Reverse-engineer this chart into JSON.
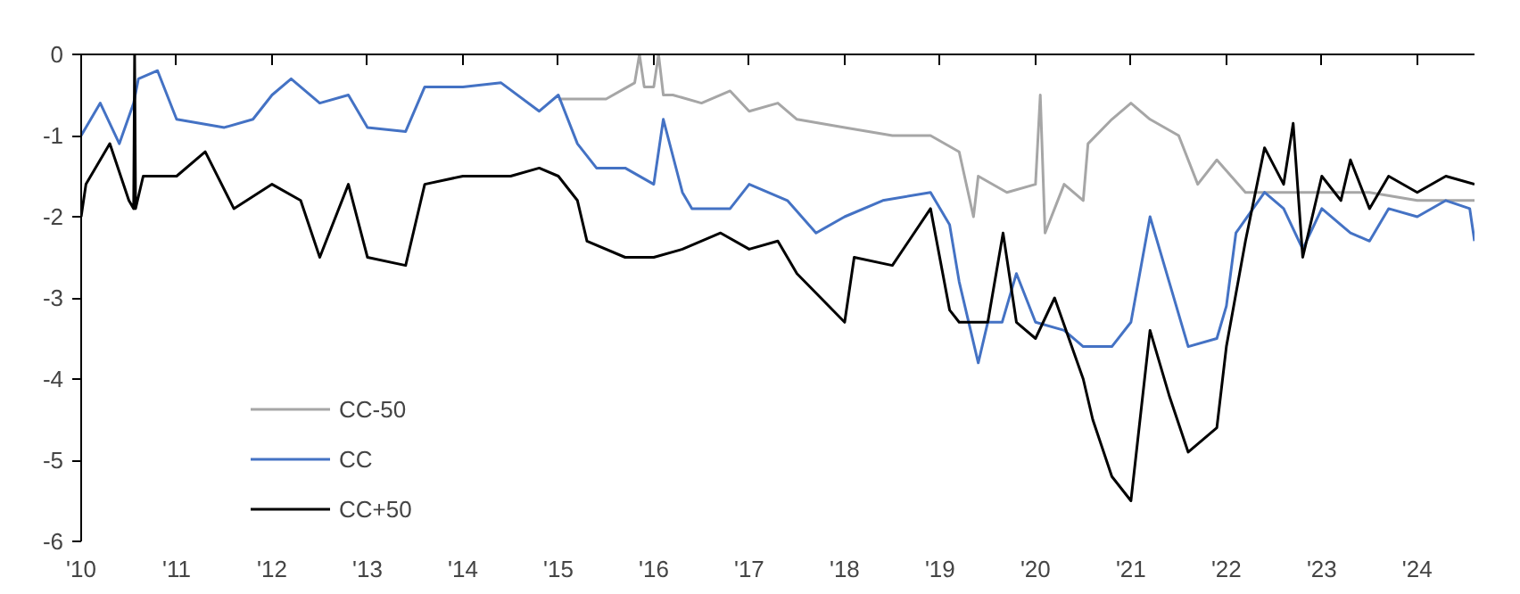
{
  "chart_data": {
    "type": "line",
    "xlim": [
      2010,
      2024.6
    ],
    "ylim": [
      -6,
      0
    ],
    "xticks": [
      {
        "value": 2010,
        "label": "'10"
      },
      {
        "value": 2011,
        "label": "'11"
      },
      {
        "value": 2012,
        "label": "'12"
      },
      {
        "value": 2013,
        "label": "'13"
      },
      {
        "value": 2014,
        "label": "'14"
      },
      {
        "value": 2015,
        "label": "'15"
      },
      {
        "value": 2016,
        "label": "'16"
      },
      {
        "value": 2017,
        "label": "'17"
      },
      {
        "value": 2018,
        "label": "'18"
      },
      {
        "value": 2019,
        "label": "'19"
      },
      {
        "value": 2020,
        "label": "'20"
      },
      {
        "value": 2021,
        "label": "'21"
      },
      {
        "value": 2022,
        "label": "'22"
      },
      {
        "value": 2023,
        "label": "'23"
      },
      {
        "value": 2024,
        "label": "'24"
      }
    ],
    "yticks": [
      0,
      -1,
      -2,
      -3,
      -4,
      -5,
      -6
    ],
    "grid": false,
    "legend": "bottom left",
    "line_style": "solid",
    "marker": "none",
    "series": [
      {
        "name": "CC-50",
        "color": "#a6a6a6",
        "x": [
          2015.0,
          2015.5,
          2015.8,
          2015.85,
          2015.9,
          2016.0,
          2016.05,
          2016.1,
          2016.2,
          2016.5,
          2016.8,
          2017.0,
          2017.3,
          2017.5,
          2018.0,
          2018.5,
          2018.9,
          2019.2,
          2019.35,
          2019.4,
          2019.7,
          2020.0,
          2020.05,
          2020.1,
          2020.3,
          2020.5,
          2020.55,
          2020.8,
          2021.0,
          2021.2,
          2021.5,
          2021.7,
          2021.9,
          2022.2,
          2022.5,
          2023.0,
          2023.5,
          2024.0,
          2024.6
        ],
        "values": [
          -0.55,
          -0.55,
          -0.35,
          0,
          -0.4,
          -0.4,
          0,
          -0.5,
          -0.5,
          -0.6,
          -0.45,
          -0.7,
          -0.6,
          -0.8,
          -0.9,
          -1.0,
          -1.0,
          -1.2,
          -2.0,
          -1.5,
          -1.7,
          -1.6,
          -0.5,
          -2.2,
          -1.6,
          -1.8,
          -1.1,
          -0.8,
          -0.6,
          -0.8,
          -1.0,
          -1.6,
          -1.3,
          -1.7,
          -1.7,
          -1.7,
          -1.7,
          -1.8,
          -1.8
        ]
      },
      {
        "name": "CC",
        "color": "#4472c4",
        "x": [
          2010.0,
          2010.2,
          2010.4,
          2010.55,
          2010.6,
          2010.8,
          2011.0,
          2011.5,
          2011.8,
          2012.0,
          2012.2,
          2012.5,
          2012.8,
          2013.0,
          2013.4,
          2013.6,
          2014.0,
          2014.4,
          2014.8,
          2015.0,
          2015.2,
          2015.4,
          2015.7,
          2016.0,
          2016.1,
          2016.3,
          2016.4,
          2016.8,
          2017.0,
          2017.4,
          2017.7,
          2018.0,
          2018.4,
          2018.9,
          2019.1,
          2019.2,
          2019.4,
          2019.5,
          2019.65,
          2019.8,
          2020.0,
          2020.3,
          2020.5,
          2020.8,
          2021.0,
          2021.2,
          2021.4,
          2021.6,
          2021.9,
          2022.0,
          2022.1,
          2022.4,
          2022.6,
          2022.8,
          2023.0,
          2023.3,
          2023.5,
          2023.7,
          2024.0,
          2024.3,
          2024.55,
          2024.6
        ],
        "values": [
          -1.0,
          -0.6,
          -1.1,
          -0.6,
          -0.3,
          -0.2,
          -0.8,
          -0.9,
          -0.8,
          -0.5,
          -0.3,
          -0.6,
          -0.5,
          -0.9,
          -0.95,
          -0.4,
          -0.4,
          -0.35,
          -0.7,
          -0.5,
          -1.1,
          -1.4,
          -1.4,
          -1.6,
          -0.8,
          -1.7,
          -1.9,
          -1.9,
          -1.6,
          -1.8,
          -2.2,
          -2.0,
          -1.8,
          -1.7,
          -2.1,
          -2.8,
          -3.8,
          -3.3,
          -3.3,
          -2.7,
          -3.3,
          -3.4,
          -3.6,
          -3.6,
          -3.3,
          -2.0,
          -2.8,
          -3.6,
          -3.5,
          -3.1,
          -2.2,
          -1.7,
          -1.9,
          -2.4,
          -1.9,
          -2.2,
          -2.3,
          -1.9,
          -2.0,
          -1.8,
          -1.9,
          -2.3
        ]
      },
      {
        "name": "CC+50",
        "color": "#000000",
        "x": [
          2010.0,
          2010.05,
          2010.3,
          2010.5,
          2010.55,
          2010.56,
          2010.57,
          2010.65,
          2011.0,
          2011.3,
          2011.6,
          2012.0,
          2012.3,
          2012.5,
          2012.8,
          2013.0,
          2013.4,
          2013.6,
          2014.0,
          2014.5,
          2014.8,
          2015.0,
          2015.2,
          2015.3,
          2015.7,
          2016.0,
          2016.3,
          2016.7,
          2017.0,
          2017.3,
          2017.5,
          2018.0,
          2018.1,
          2018.5,
          2018.9,
          2019.1,
          2019.2,
          2019.5,
          2019.66,
          2019.8,
          2020.0,
          2020.2,
          2020.5,
          2020.6,
          2020.8,
          2021.0,
          2021.2,
          2021.4,
          2021.6,
          2021.9,
          2022.0,
          2022.2,
          2022.4,
          2022.6,
          2022.7,
          2022.8,
          2023.0,
          2023.2,
          2023.3,
          2023.5,
          2023.7,
          2024.0,
          2024.3,
          2024.6
        ],
        "values": [
          -2.0,
          -1.6,
          -1.1,
          -1.8,
          -1.9,
          0,
          -1.9,
          -1.5,
          -1.5,
          -1.2,
          -1.9,
          -1.6,
          -1.8,
          -2.5,
          -1.6,
          -2.5,
          -2.6,
          -1.6,
          -1.5,
          -1.5,
          -1.4,
          -1.5,
          -1.8,
          -2.3,
          -2.5,
          -2.5,
          -2.4,
          -2.2,
          -2.4,
          -2.3,
          -2.7,
          -3.3,
          -2.5,
          -2.6,
          -1.9,
          -3.15,
          -3.3,
          -3.3,
          -2.2,
          -3.3,
          -3.5,
          -3.0,
          -4.0,
          -4.5,
          -5.2,
          -5.5,
          -3.4,
          -4.2,
          -4.9,
          -4.6,
          -3.6,
          -2.3,
          -1.15,
          -1.6,
          -0.85,
          -2.5,
          -1.5,
          -1.8,
          -1.3,
          -1.9,
          -1.5,
          -1.7,
          -1.5,
          -1.6
        ]
      }
    ]
  }
}
